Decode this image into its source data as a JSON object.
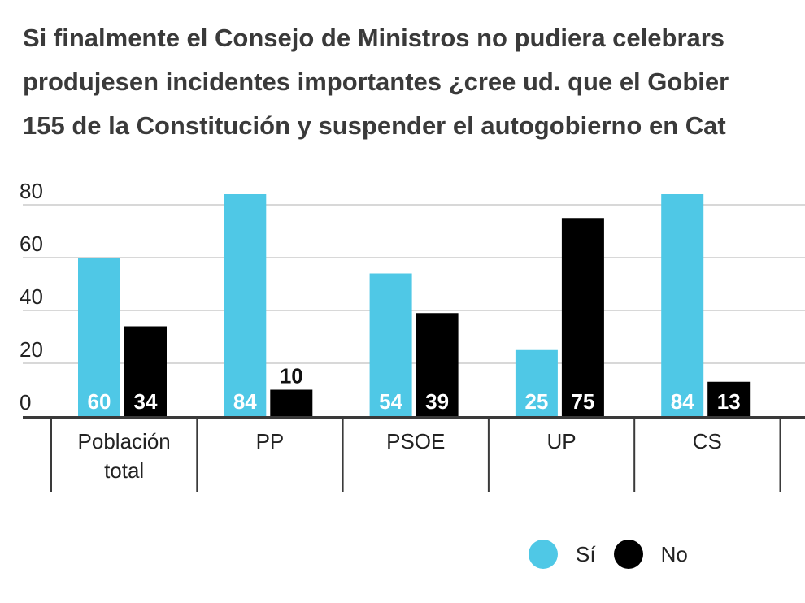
{
  "chart_data": {
    "type": "bar",
    "title_lines": [
      "Si finalmente el Consejo de Ministros no pudiera celebrars",
      "produjesen incidentes importantes ¿cree ud. que el Gobier",
      "155 de la Constitución y suspender el autogobierno en Cat"
    ],
    "categories": [
      "Población total",
      "PP",
      "PSOE",
      "UP",
      "CS"
    ],
    "category_lines": [
      [
        "Población",
        "total"
      ],
      [
        "PP"
      ],
      [
        "PSOE"
      ],
      [
        "UP"
      ],
      [
        "CS"
      ]
    ],
    "series": [
      {
        "name": "Sí",
        "color": "#4fc8e6",
        "values": [
          60,
          84,
          54,
          25,
          84
        ]
      },
      {
        "name": "No",
        "color": "#000000",
        "values": [
          34,
          10,
          39,
          75,
          13
        ]
      }
    ],
    "ylim": [
      0,
      85
    ],
    "yticks": [
      0,
      20,
      40,
      60,
      80
    ],
    "grid": true,
    "legend": "bottom-right"
  }
}
